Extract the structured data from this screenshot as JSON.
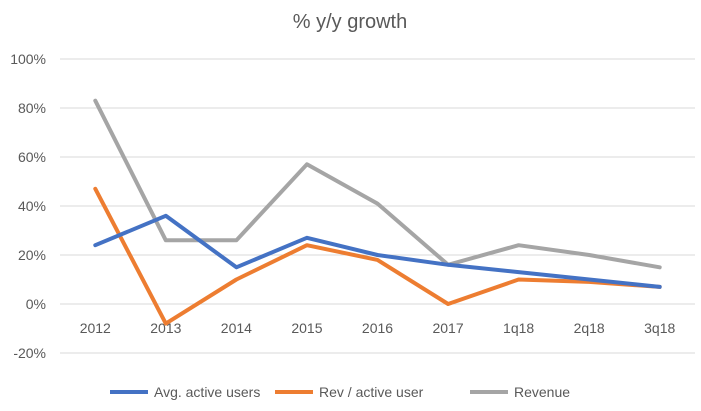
{
  "chart_data": {
    "type": "line",
    "title": "% y/y growth",
    "xlabel": "",
    "ylabel": "",
    "categories": [
      "2012",
      "2013",
      "2014",
      "2015",
      "2016",
      "2017",
      "1q18",
      "2q18",
      "3q18"
    ],
    "y_ticks": [
      "-20%",
      "0%",
      "20%",
      "40%",
      "60%",
      "80%",
      "100%"
    ],
    "y_tick_values": [
      -20,
      0,
      20,
      40,
      60,
      80,
      100
    ],
    "ylim": [
      -20,
      100
    ],
    "grid": true,
    "legend_position": "bottom",
    "series": [
      {
        "name": "Avg. active users",
        "color": "#4472C4",
        "values": [
          24,
          36,
          15,
          27,
          20,
          16,
          13,
          10,
          7
        ]
      },
      {
        "name": "Rev / active user",
        "color": "#ED7D31",
        "values": [
          47,
          -8,
          10,
          24,
          18,
          0,
          10,
          9,
          7
        ]
      },
      {
        "name": "Revenue",
        "color": "#A5A5A5",
        "values": [
          83,
          26,
          26,
          57,
          41,
          16,
          24,
          20,
          15
        ]
      }
    ]
  }
}
